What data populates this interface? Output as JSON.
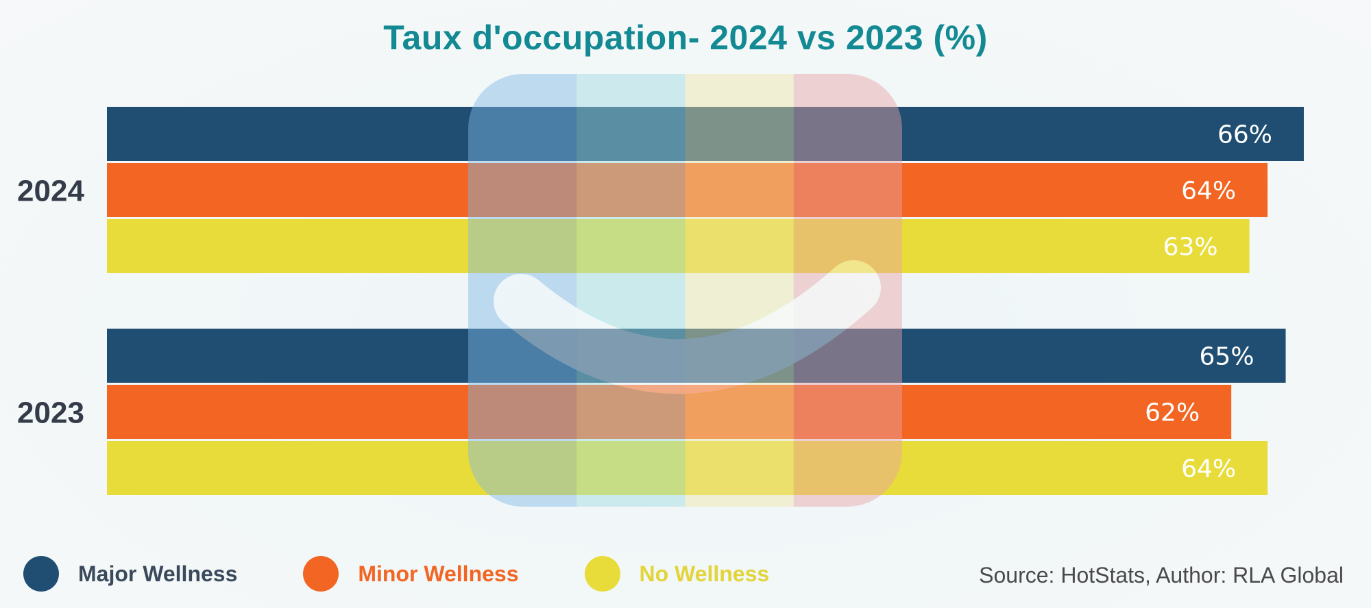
{
  "chart_data": {
    "type": "bar",
    "orientation": "horizontal",
    "title": "Taux d'occupation- 2024 vs 2023 (%)",
    "categories": [
      "2024",
      "2023"
    ],
    "series": [
      {
        "name": "Major Wellness",
        "color": "#1f4e72",
        "values": [
          66,
          65
        ],
        "labels": [
          "66%",
          "65%"
        ]
      },
      {
        "name": "Minor Wellness",
        "color": "#f26522",
        "values": [
          64,
          62
        ],
        "labels": [
          "64%",
          "62%"
        ]
      },
      {
        "name": "No Wellness",
        "color": "#e8dc3a",
        "values": [
          63,
          64
        ],
        "labels": [
          "63%",
          "64%"
        ]
      }
    ],
    "xlim": [
      0,
      66
    ],
    "grid": false,
    "legend_position": "bottom"
  },
  "legend": {
    "items": [
      {
        "label": "Major Wellness",
        "color": "#1f4e72",
        "text_color": "#3a4a5c"
      },
      {
        "label": "Minor Wellness",
        "color": "#f26522",
        "text_color": "#f26522"
      },
      {
        "label": "No Wellness",
        "color": "#e8dc3a",
        "text_color": "#e3d43a"
      }
    ]
  },
  "source": "Source: HotStats, Author: RLA Global",
  "watermark": {
    "icon": "smile-logo-icon",
    "colors": [
      "#7fb8e6",
      "#9fdce0",
      "#efe7a8",
      "#e9a3a6"
    ]
  }
}
